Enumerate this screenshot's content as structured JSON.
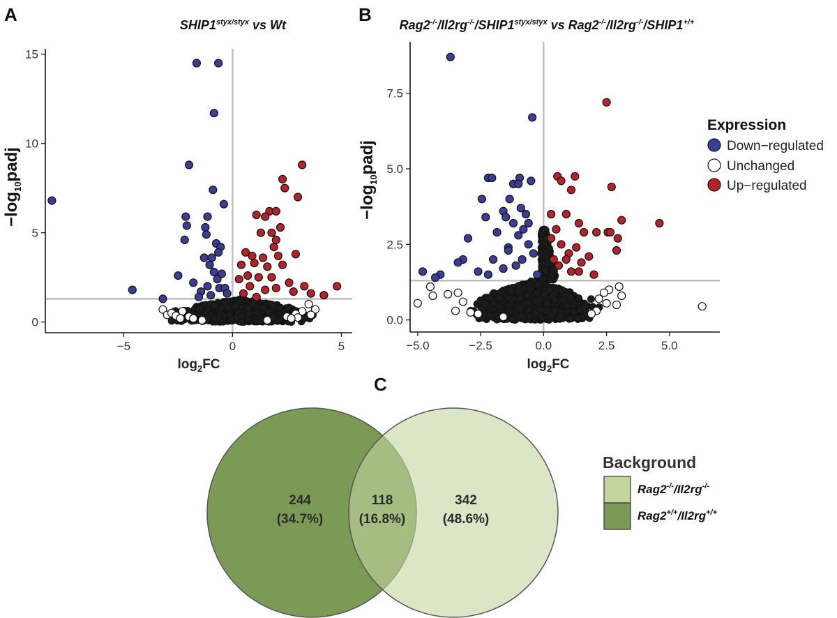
{
  "panels": {
    "a": "A",
    "b": "B",
    "c": "C"
  },
  "colors": {
    "down": "#3a3f96",
    "unchanged": "#ffffff",
    "up": "#b5232a",
    "dense": "#1b1b1b",
    "ref_line": "#bdbdbd",
    "venn_left": "#7b9a55",
    "venn_right": "#c3d6a0"
  },
  "chart_data": [
    {
      "id": "A",
      "type": "scatter",
      "title_parts": {
        "gene": "SHIP1",
        "genotype": "styx/styx",
        "rest": " vs Wt"
      },
      "xlabel_main": "log",
      "xlabel_sub": "2",
      "xlabel_rest": "FC",
      "ylabel_main": "−log",
      "ylabel_sub": "10",
      "ylabel_rest": "padj",
      "xlim": [
        -8.6,
        5.5
      ],
      "ylim": [
        -0.6,
        15.3
      ],
      "xticks": [
        -5,
        0,
        5
      ],
      "xtick_labels": [
        "−5",
        "0",
        "5"
      ],
      "yticks": [
        0,
        5,
        10,
        15
      ],
      "ytick_labels": [
        "0",
        "5",
        "10",
        "15"
      ],
      "vline": 0,
      "hline": 1.3,
      "dense_region": {
        "x": [
          -3.1,
          3.9
        ],
        "y": [
          0.0,
          1.3
        ]
      },
      "points": {
        "down": [
          [
            -8.3,
            6.8
          ],
          [
            -4.6,
            1.8
          ],
          [
            -1.65,
            14.5
          ],
          [
            -0.65,
            14.5
          ],
          [
            -0.85,
            11.7
          ],
          [
            -2.0,
            8.8
          ],
          [
            -0.9,
            7.4
          ],
          [
            -0.4,
            6.6
          ],
          [
            -2.15,
            5.9
          ],
          [
            -2.1,
            5.4
          ],
          [
            -1.15,
            5.9
          ],
          [
            -1.25,
            5.3
          ],
          [
            -1.2,
            4.9
          ],
          [
            -2.2,
            4.6
          ],
          [
            -0.75,
            4.4
          ],
          [
            -0.55,
            4.2
          ],
          [
            -0.65,
            3.9
          ],
          [
            -1.3,
            3.6
          ],
          [
            -0.95,
            3.6
          ],
          [
            -1.05,
            3.2
          ],
          [
            -0.85,
            2.8
          ],
          [
            -0.5,
            2.7
          ],
          [
            -1.8,
            2.2
          ],
          [
            -0.7,
            2.4
          ],
          [
            -1.15,
            2.0
          ],
          [
            -0.6,
            1.9
          ],
          [
            -1.45,
            1.7
          ],
          [
            -1.55,
            1.4
          ],
          [
            -1.0,
            1.5
          ],
          [
            -0.35,
            1.9
          ],
          [
            -0.25,
            1.6
          ],
          [
            -2.5,
            2.6
          ],
          [
            -3.2,
            1.3
          ]
        ],
        "up": [
          [
            3.2,
            8.8
          ],
          [
            2.3,
            8.0
          ],
          [
            2.4,
            7.5
          ],
          [
            3.0,
            7.0
          ],
          [
            1.7,
            6.2
          ],
          [
            2.0,
            6.2
          ],
          [
            1.1,
            6.0
          ],
          [
            1.5,
            5.9
          ],
          [
            2.2,
            5.3
          ],
          [
            1.8,
            5.0
          ],
          [
            1.3,
            5.0
          ],
          [
            2.0,
            4.6
          ],
          [
            1.9,
            4.2
          ],
          [
            0.6,
            3.9
          ],
          [
            0.9,
            3.7
          ],
          [
            1.4,
            3.6
          ],
          [
            2.1,
            3.7
          ],
          [
            2.9,
            3.8
          ],
          [
            1.0,
            3.3
          ],
          [
            1.6,
            3.1
          ],
          [
            0.4,
            3.2
          ],
          [
            2.3,
            3.2
          ],
          [
            0.7,
            2.6
          ],
          [
            1.2,
            2.5
          ],
          [
            1.8,
            2.5
          ],
          [
            2.6,
            2.2
          ],
          [
            3.3,
            2.0
          ],
          [
            4.8,
            2.0
          ],
          [
            2.0,
            1.9
          ],
          [
            0.8,
            2.0
          ],
          [
            1.5,
            1.8
          ],
          [
            2.8,
            1.7
          ],
          [
            3.6,
            1.6
          ],
          [
            4.2,
            1.5
          ],
          [
            0.5,
            1.6
          ],
          [
            1.1,
            1.4
          ],
          [
            0.3,
            2.4
          ]
        ],
        "unchanged": [
          [
            -3.2,
            0.7
          ],
          [
            -3.0,
            0.4
          ],
          [
            -2.8,
            0.5
          ],
          [
            -2.3,
            0.6
          ],
          [
            -2.6,
            0.35
          ],
          [
            -2.0,
            0.3
          ],
          [
            -1.8,
            0.2
          ],
          [
            -2.4,
            0.2
          ],
          [
            3.5,
            1.0
          ],
          [
            3.8,
            0.7
          ],
          [
            3.2,
            0.6
          ],
          [
            2.9,
            0.45
          ],
          [
            3.6,
            0.4
          ],
          [
            3.0,
            0.25
          ],
          [
            2.5,
            0.3
          ],
          [
            2.7,
            0.2
          ],
          [
            -1.4,
            0.1
          ],
          [
            1.6,
            0.1
          ]
        ]
      }
    },
    {
      "id": "B",
      "type": "scatter",
      "title_parts": [
        {
          "t": "Rag2",
          "sup": false
        },
        {
          "t": "-/-",
          "sup": true
        },
        {
          "t": "/Il2rg",
          "sup": false
        },
        {
          "t": "-/-",
          "sup": true
        },
        {
          "t": "/SHIP1",
          "sup": false
        },
        {
          "t": "styx/styx",
          "sup": true
        },
        {
          "t": " vs Rag2",
          "sup": false
        },
        {
          "t": "-/-",
          "sup": true
        },
        {
          "t": "/Il2rg",
          "sup": false
        },
        {
          "t": "-/-",
          "sup": true
        },
        {
          "t": "/SHIP1",
          "sup": false
        },
        {
          "t": "+/+",
          "sup": true
        }
      ],
      "xlabel_main": "log",
      "xlabel_sub": "2",
      "xlabel_rest": "FC",
      "ylabel_main": "−log",
      "ylabel_sub": "10",
      "ylabel_rest": "padj",
      "xlim": [
        -5.3,
        7.0
      ],
      "ylim": [
        -0.4,
        9.2
      ],
      "xticks": [
        -5.0,
        -2.5,
        0.0,
        2.5,
        5.0
      ],
      "xtick_labels": [
        "−5.0",
        "−2.5",
        "0.0",
        "2.5",
        "5.0"
      ],
      "yticks": [
        0.0,
        2.5,
        5.0,
        7.5
      ],
      "ytick_labels": [
        "0.0",
        "2.5",
        "5.0",
        "7.5"
      ],
      "vline": 0,
      "hline": 1.3,
      "dense_region": {
        "x": [
          -3.2,
          2.4
        ],
        "y": [
          0.0,
          1.3
        ]
      },
      "dense_spike": {
        "x": [
          -0.1,
          0.5
        ],
        "y": [
          1.3,
          3.0
        ]
      },
      "points": {
        "down": [
          [
            -3.7,
            8.7
          ],
          [
            -0.45,
            6.7
          ],
          [
            -2.2,
            4.7
          ],
          [
            -2.05,
            4.7
          ],
          [
            -0.95,
            4.7
          ],
          [
            -1.2,
            4.5
          ],
          [
            -1.0,
            4.5
          ],
          [
            -0.5,
            4.6
          ],
          [
            -1.35,
            4.0
          ],
          [
            -2.45,
            4.0
          ],
          [
            -1.6,
            3.6
          ],
          [
            -0.9,
            3.7
          ],
          [
            -2.3,
            3.4
          ],
          [
            -1.5,
            3.4
          ],
          [
            -0.8,
            3.0
          ],
          [
            -1.2,
            3.2
          ],
          [
            -0.6,
            3.2
          ],
          [
            -1.85,
            2.9
          ],
          [
            -1.0,
            2.8
          ],
          [
            -3.0,
            2.7
          ],
          [
            -1.4,
            2.4
          ],
          [
            -0.6,
            2.5
          ],
          [
            -2.0,
            2.0
          ],
          [
            -3.2,
            2.0
          ],
          [
            -3.4,
            1.9
          ],
          [
            -0.85,
            2.0
          ],
          [
            -1.6,
            1.7
          ],
          [
            -2.6,
            1.6
          ],
          [
            -4.1,
            1.5
          ],
          [
            -4.8,
            1.6
          ],
          [
            -4.3,
            1.4
          ],
          [
            -0.4,
            2.2
          ],
          [
            -1.1,
            1.8
          ],
          [
            -0.25,
            1.5
          ],
          [
            -2.2,
            1.5
          ],
          [
            -1.4,
            2.3
          ],
          [
            -0.7,
            3.5
          ]
        ],
        "up": [
          [
            2.5,
            7.2
          ],
          [
            0.55,
            4.75
          ],
          [
            1.25,
            4.75
          ],
          [
            0.7,
            4.6
          ],
          [
            2.7,
            4.4
          ],
          [
            1.1,
            4.3
          ],
          [
            0.3,
            3.5
          ],
          [
            0.9,
            3.5
          ],
          [
            1.4,
            3.2
          ],
          [
            0.5,
            3.0
          ],
          [
            1.6,
            2.9
          ],
          [
            2.1,
            2.9
          ],
          [
            2.55,
            2.9
          ],
          [
            2.65,
            2.9
          ],
          [
            3.1,
            3.3
          ],
          [
            2.95,
            2.7
          ],
          [
            2.9,
            2.3
          ],
          [
            4.6,
            3.2
          ],
          [
            0.7,
            2.5
          ],
          [
            1.3,
            2.4
          ],
          [
            1.0,
            2.2
          ],
          [
            1.8,
            2.1
          ],
          [
            1.5,
            1.9
          ],
          [
            0.4,
            2.0
          ],
          [
            2.0,
            1.5
          ],
          [
            1.1,
            1.6
          ],
          [
            0.6,
            1.8
          ],
          [
            1.4,
            1.6
          ],
          [
            0.9,
            2.0
          ],
          [
            0.3,
            2.7
          ]
        ],
        "unchanged": [
          [
            -5.0,
            0.55
          ],
          [
            -4.4,
            0.8
          ],
          [
            -4.5,
            1.1
          ],
          [
            -3.8,
            0.85
          ],
          [
            -3.4,
            0.9
          ],
          [
            -3.2,
            0.6
          ],
          [
            -3.5,
            0.3
          ],
          [
            -2.9,
            0.25
          ],
          [
            -2.6,
            0.2
          ],
          [
            6.3,
            0.45
          ],
          [
            3.0,
            1.1
          ],
          [
            2.6,
            1.0
          ],
          [
            3.1,
            0.8
          ],
          [
            2.5,
            0.55
          ],
          [
            2.9,
            0.5
          ],
          [
            2.2,
            0.7
          ],
          [
            2.1,
            0.3
          ],
          [
            1.9,
            0.2
          ],
          [
            2.4,
            0.9
          ],
          [
            -1.6,
            0.1
          ]
        ]
      }
    },
    {
      "id": "C",
      "type": "venn",
      "regions": [
        {
          "name": "left-only",
          "count": "244",
          "pct": "(34.7%)"
        },
        {
          "name": "intersection",
          "count": "118",
          "pct": "(16.8%)"
        },
        {
          "name": "right-only",
          "count": "342",
          "pct": "(48.6%)"
        }
      ]
    }
  ],
  "expression_legend": {
    "title": "Expression",
    "items": [
      {
        "label": "Down−regulated"
      },
      {
        "label": "Unchanged"
      },
      {
        "label": "Up−regulated"
      }
    ]
  },
  "background_legend": {
    "title": "Background",
    "items": [
      {
        "parts": [
          {
            "t": "Rag2",
            "sup": false
          },
          {
            "t": "-/-",
            "sup": true
          },
          {
            "t": "/Il2rg",
            "sup": false
          },
          {
            "t": "-/-",
            "sup": true
          }
        ]
      },
      {
        "parts": [
          {
            "t": "Rag2",
            "sup": false
          },
          {
            "t": "+/+",
            "sup": true
          },
          {
            "t": "/Il2rg",
            "sup": false
          },
          {
            "t": "+/+",
            "sup": true
          }
        ]
      }
    ]
  }
}
